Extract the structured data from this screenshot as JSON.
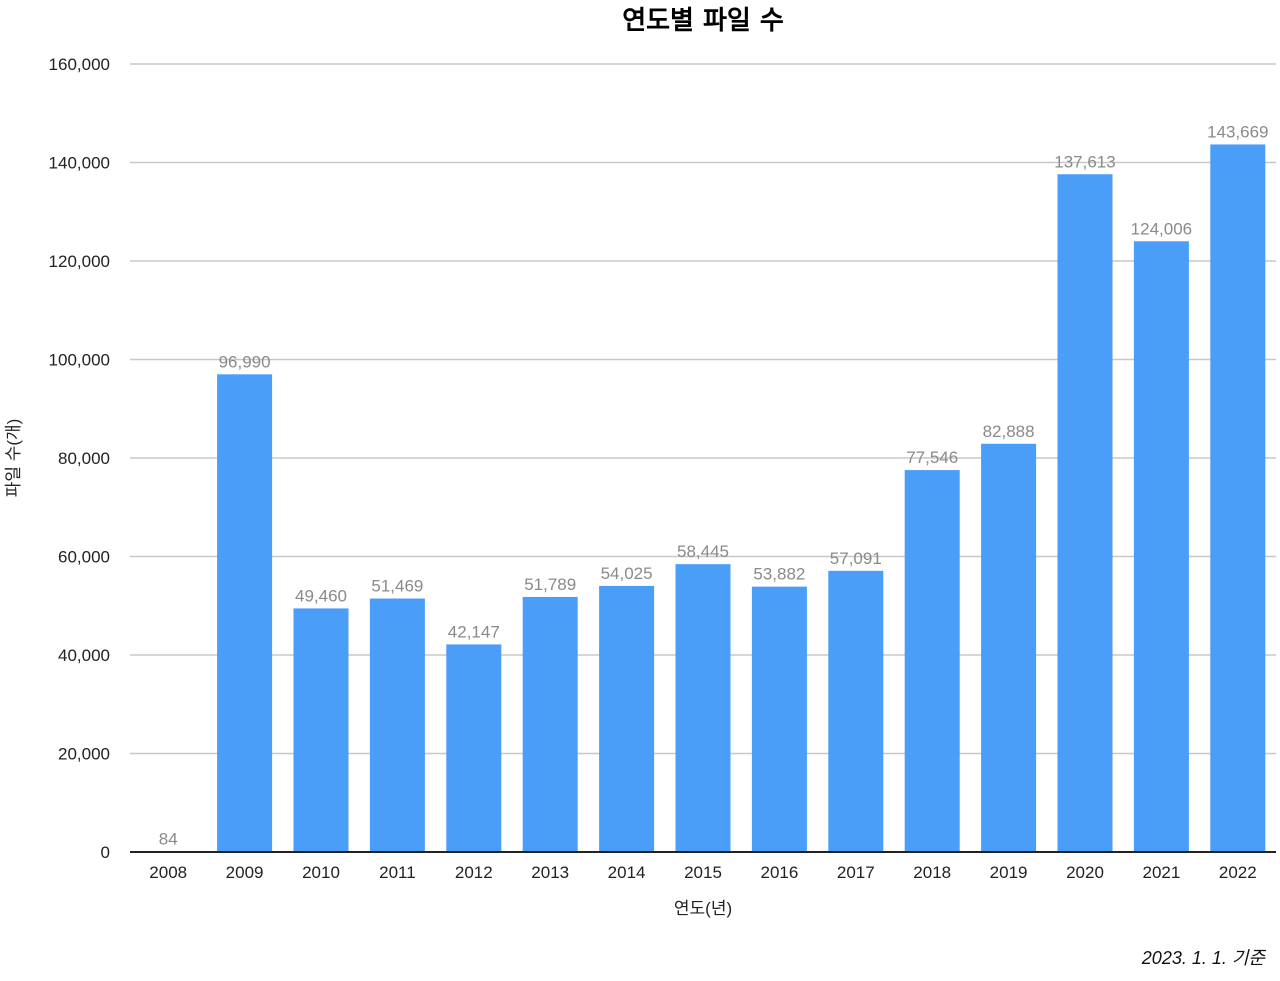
{
  "chart_data": {
    "type": "bar",
    "title": "연도별 파일 수",
    "xlabel": "연도(년)",
    "ylabel": "파일 수(개)",
    "ylim": [
      0,
      160000
    ],
    "yticks": [
      0,
      20000,
      40000,
      60000,
      80000,
      100000,
      120000,
      140000,
      160000
    ],
    "ytick_labels": [
      "0",
      "20,000",
      "40,000",
      "60,000",
      "80,000",
      "100,000",
      "120,000",
      "140,000",
      "160,000"
    ],
    "categories": [
      "2008",
      "2009",
      "2010",
      "2011",
      "2012",
      "2013",
      "2014",
      "2015",
      "2016",
      "2017",
      "2018",
      "2019",
      "2020",
      "2021",
      "2022"
    ],
    "values": [
      84,
      96990,
      49460,
      51469,
      42147,
      51789,
      54025,
      58445,
      53882,
      57091,
      77546,
      82888,
      137613,
      124006,
      143669
    ],
    "value_labels": [
      "84",
      "96,990",
      "49,460",
      "51,469",
      "42,147",
      "51,789",
      "54,025",
      "58,445",
      "53,882",
      "57,091",
      "77,546",
      "82,888",
      "137,613",
      "124,006",
      "143,669"
    ],
    "grid": true,
    "bar_color": "#4a9ef7",
    "label_color": "#8a8a8a",
    "footnote": "2023. 1. 1. 기준"
  }
}
